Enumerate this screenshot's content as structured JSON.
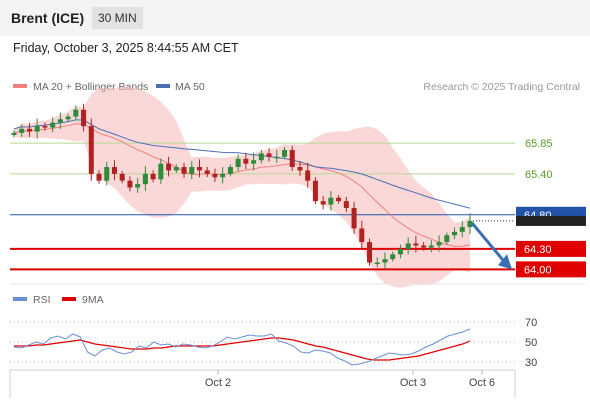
{
  "header": {
    "instrument": "Brent (ICE)",
    "timeframe": "30 MIN"
  },
  "timestamp": "Friday, October 3, 2025 8:44:55 AM CET",
  "legend": {
    "ma20": "MA 20 + Bollinger Bands",
    "ma50": "MA 50",
    "credit": "Research © 2025 Trading Central",
    "rsi": "RSI",
    "rsi_ma": "9MA"
  },
  "colors": {
    "ma20": "#f08080",
    "ma50": "#4a6fb5",
    "band": "#f7b8b8",
    "up": "#2e8b3a",
    "down": "#b02222",
    "support": "#e00000",
    "pivot": "#2255aa",
    "resistance_line": "#b8d890",
    "resistance_text": "#5a9a2a",
    "rsi_line": "#6b8fd6",
    "arrow": "#3b6fb5"
  },
  "chart_data": [
    {
      "type": "candlestick",
      "title": "Brent (ICE) 30 MIN",
      "x_ticks": [
        "Oct 2",
        "Oct 3",
        "Oct 6"
      ],
      "ylim": [
        63.8,
        66.6
      ],
      "levels": [
        {
          "label": "65.85",
          "value": 65.85,
          "kind": "resistance"
        },
        {
          "label": "65.40",
          "value": 65.4,
          "kind": "resistance"
        },
        {
          "label": "64.80",
          "value": 64.8,
          "kind": "pivot"
        },
        {
          "label": "64.30",
          "value": 64.3,
          "kind": "support"
        },
        {
          "label": "64.00",
          "value": 64.0,
          "kind": "support"
        }
      ],
      "last_price": 64.71,
      "closes": [
        66.0,
        66.06,
        66.02,
        66.1,
        66.08,
        66.15,
        66.2,
        66.24,
        66.34,
        66.1,
        65.4,
        65.3,
        65.5,
        65.4,
        65.3,
        65.2,
        65.25,
        65.4,
        65.32,
        65.55,
        65.45,
        65.5,
        65.4,
        65.5,
        65.45,
        65.4,
        65.35,
        65.4,
        65.5,
        65.62,
        65.55,
        65.6,
        65.7,
        65.65,
        65.65,
        65.75,
        65.5,
        65.45,
        65.3,
        65.0,
        64.95,
        65.05,
        65.0,
        64.9,
        64.6,
        64.4,
        64.1,
        64.1,
        64.15,
        64.22,
        64.3,
        64.38,
        64.35,
        64.32,
        64.35,
        64.4,
        64.5,
        64.55,
        64.62,
        64.71
      ],
      "series": [
        {
          "name": "MA 20 + Bollinger Bands"
        },
        {
          "name": "MA 50"
        }
      ]
    },
    {
      "type": "line",
      "y_ticks": [
        70,
        50,
        30
      ],
      "ylim": [
        20,
        80
      ],
      "series": [
        {
          "name": "RSI",
          "values": [
            45,
            44,
            47,
            50,
            48,
            54,
            56,
            53,
            58,
            55,
            40,
            36,
            42,
            44,
            40,
            38,
            40,
            46,
            44,
            50,
            47,
            48,
            45,
            48,
            47,
            45,
            44,
            46,
            50,
            55,
            53,
            55,
            57,
            56,
            56,
            58,
            51,
            49,
            46,
            40,
            39,
            42,
            41,
            39,
            34,
            31,
            27,
            28,
            30,
            33,
            36,
            39,
            38,
            37,
            38,
            41,
            45,
            48,
            52,
            56,
            58,
            60,
            63
          ]
        },
        {
          "name": "9MA",
          "values": [
            46,
            46,
            46,
            47,
            47,
            48,
            49,
            50,
            51,
            52,
            50,
            48,
            47,
            46,
            45,
            44,
            43,
            43,
            43,
            44,
            44,
            45,
            46,
            46,
            46,
            46,
            46,
            46,
            47,
            48,
            49,
            50,
            51,
            52,
            53,
            54,
            54,
            53,
            52,
            50,
            48,
            46,
            45,
            43,
            41,
            39,
            37,
            35,
            33,
            32,
            32,
            32,
            33,
            34,
            35,
            36,
            38,
            40,
            42,
            44,
            46,
            48,
            51
          ]
        }
      ]
    }
  ]
}
